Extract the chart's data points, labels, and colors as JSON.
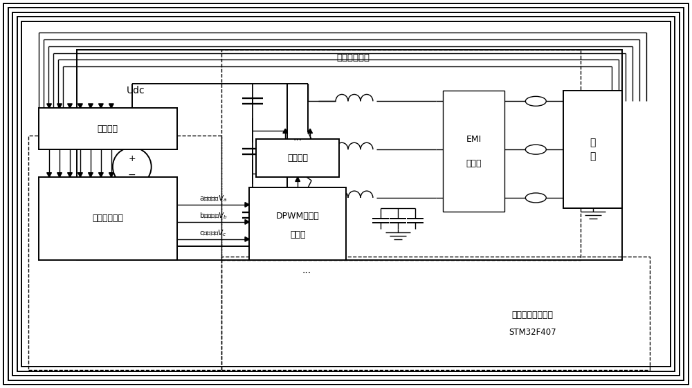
{
  "bg": "#ffffff",
  "lc": "#000000",
  "labels": {
    "udc": "Udc",
    "multilevel": "多电平逆变器",
    "emi1": "EMI",
    "emi2": "滤波器",
    "load1": "负",
    "load2": "载",
    "sampling": "采样单元",
    "closed_loop": "闭环控制单元",
    "drive": "驱动电路",
    "dpwm1": "DPWM脉宽调",
    "dpwm2": "制单元",
    "digital": "数字处理控制模块",
    "stm": "STM32F407",
    "a_wave": "a相调制波$V_a$",
    "b_wave": "b相调制波$V_b$",
    "c_wave": "c相调制波$V_c$"
  }
}
